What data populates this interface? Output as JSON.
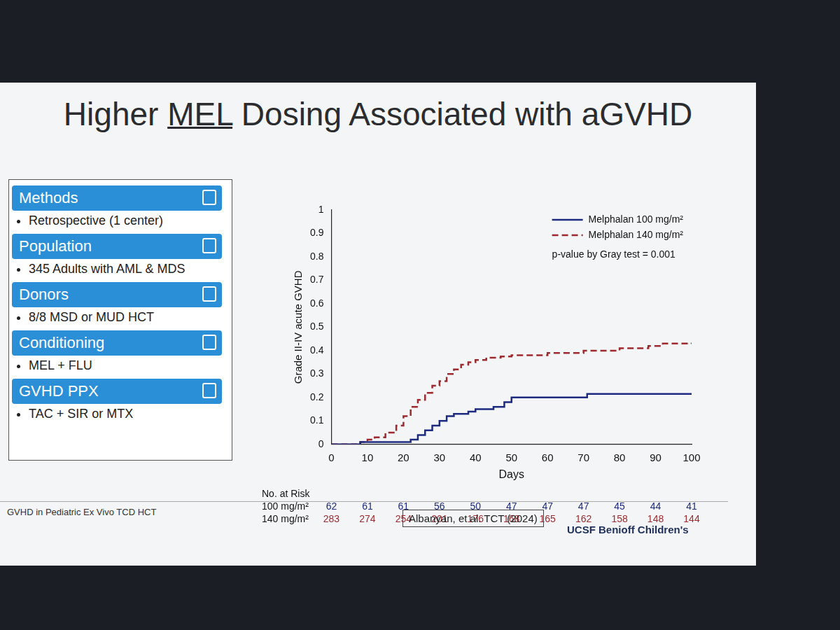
{
  "slide": {
    "title": "Higher MEL Dosing Associated with aGVHD",
    "title_underline": "MEL",
    "panels": [
      {
        "heading": "Methods",
        "items": [
          "Retrospective (1 center)"
        ]
      },
      {
        "heading": "Population",
        "items": [
          "345 Adults with AML & MDS"
        ]
      },
      {
        "heading": "Donors",
        "items": [
          "8/8 MSD or MUD HCT"
        ]
      },
      {
        "heading": "Conditioning",
        "items": [
          "MEL + FLU"
        ]
      },
      {
        "heading": "GVHD PPX",
        "items": [
          "TAC + SIR or MTX"
        ]
      }
    ],
    "footer": {
      "left": "GVHD in Pediatric Ex Vivo TCD HCT",
      "citation": "Albanyan, et al. TCT (2024)",
      "logo": "UCSF Benioff Children's"
    }
  },
  "chart_data": {
    "type": "step",
    "x_label": "Days",
    "y_label": "Grade II-IV acute GVHD",
    "annotation": "p-value by Gray test = 0.001",
    "xlim": [
      0,
      100
    ],
    "xticks": [
      0,
      10,
      20,
      30,
      40,
      50,
      60,
      70,
      80,
      90,
      100
    ],
    "ylim": [
      0,
      1
    ],
    "yticks": [
      0,
      0.1,
      0.2,
      0.3,
      0.4,
      0.5,
      0.6,
      0.7,
      0.8,
      0.9,
      1
    ],
    "grid": false,
    "legend": "upper right",
    "series": [
      {
        "name": "Melphalan 100 mg/m²",
        "color": "#1c2a80",
        "line_style": "solid",
        "x": [
          0,
          8,
          22,
          24,
          26,
          28,
          30,
          32,
          34,
          38,
          40,
          45,
          48,
          50,
          71,
          100
        ],
        "values": [
          0,
          0.01,
          0.02,
          0.04,
          0.06,
          0.08,
          0.1,
          0.12,
          0.13,
          0.14,
          0.15,
          0.16,
          0.18,
          0.2,
          0.215,
          0.215
        ]
      },
      {
        "name": "Melphalan 140 mg/m²",
        "color": "#9e2a2f",
        "line_style": "dashed",
        "x": [
          0,
          8,
          10,
          12,
          15,
          18,
          20,
          22,
          24,
          26,
          28,
          30,
          32,
          34,
          36,
          38,
          40,
          43,
          47,
          50,
          60,
          70,
          80,
          88,
          92,
          100
        ],
        "values": [
          0,
          0.01,
          0.02,
          0.03,
          0.05,
          0.08,
          0.12,
          0.16,
          0.19,
          0.22,
          0.25,
          0.27,
          0.3,
          0.32,
          0.34,
          0.35,
          0.36,
          0.37,
          0.375,
          0.38,
          0.39,
          0.4,
          0.41,
          0.42,
          0.43,
          0.433
        ]
      }
    ],
    "at_risk": {
      "title": "No. at Risk",
      "x": [
        0,
        10,
        20,
        30,
        40,
        50,
        60,
        70,
        80,
        90,
        100
      ],
      "rows": [
        {
          "name": "100 mg/m²",
          "color": "#1c2a80",
          "values": [
            62,
            61,
            61,
            56,
            50,
            47,
            47,
            47,
            45,
            44,
            41
          ]
        },
        {
          "name": "140 mg/m²",
          "color": "#9e2a2f",
          "values": [
            283,
            274,
            254,
            201,
            176,
            168,
            165,
            162,
            158,
            148,
            144
          ]
        }
      ]
    }
  }
}
